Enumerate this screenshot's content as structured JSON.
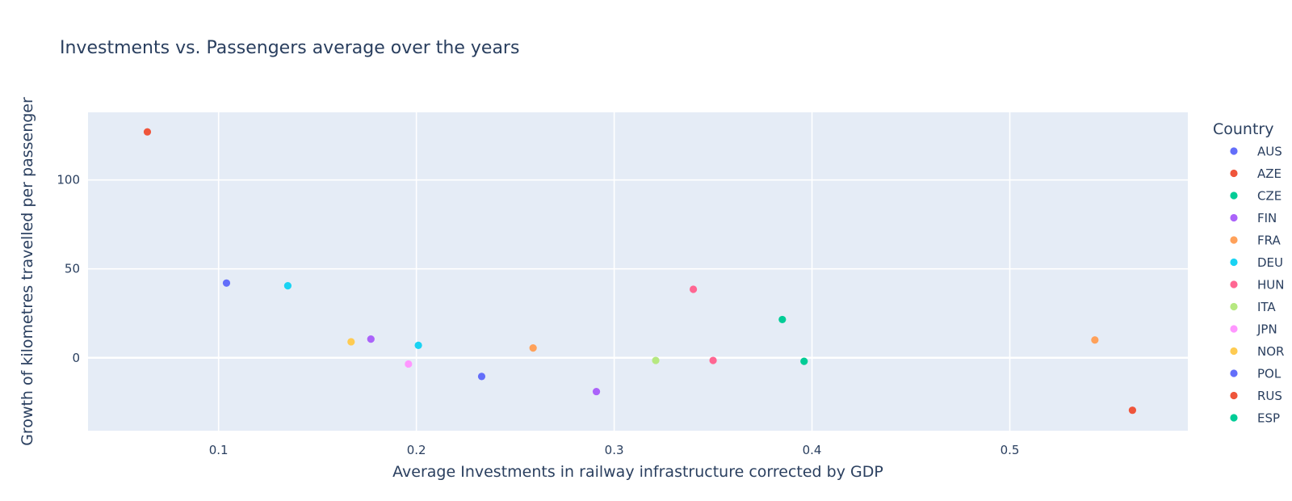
{
  "chart_data": {
    "type": "scatter",
    "title": "Investments vs. Passengers average over the years",
    "xlabel": "Average Investments in railway infrastructure corrected by GDP",
    "ylabel": "Growth of kilometres travelled per passenger",
    "xlim": [
      0.034,
      0.59
    ],
    "ylim": [
      -41,
      138
    ],
    "xticks": [
      0.1,
      0.2,
      0.3,
      0.4,
      0.5
    ],
    "xtick_labels": [
      "0.1",
      "0.2",
      "0.3",
      "0.4",
      "0.5"
    ],
    "yticks": [
      0,
      50,
      100
    ],
    "ytick_labels": [
      "0",
      "50",
      "100"
    ],
    "grid": true,
    "plot_background": "#e5ecf6",
    "grid_color": "#ffffff",
    "legend": {
      "title": "Country",
      "placement": "right"
    },
    "series": [
      {
        "name": "AUS",
        "color": "#636efa",
        "points": [
          {
            "x": 0.104,
            "y": 42
          }
        ]
      },
      {
        "name": "AZE",
        "color": "#ef553b",
        "points": [
          {
            "x": 0.064,
            "y": 127
          }
        ]
      },
      {
        "name": "CZE",
        "color": "#00cc96",
        "points": [
          {
            "x": 0.396,
            "y": -2
          }
        ]
      },
      {
        "name": "FIN",
        "color": "#ab63fa",
        "points": [
          {
            "x": 0.177,
            "y": 10.5
          }
        ]
      },
      {
        "name": "FRA",
        "color": "#ffa15a",
        "points": [
          {
            "x": 0.259,
            "y": 5.5
          }
        ]
      },
      {
        "name": "DEU",
        "color": "#19d3f3",
        "points": [
          {
            "x": 0.135,
            "y": 40.5
          },
          {
            "x": 0.201,
            "y": 7
          }
        ]
      },
      {
        "name": "HUN",
        "color": "#ff6692",
        "points": [
          {
            "x": 0.34,
            "y": 38.5
          },
          {
            "x": 0.35,
            "y": -1.5
          }
        ]
      },
      {
        "name": "ITA",
        "color": "#b6e880",
        "points": [
          {
            "x": 0.321,
            "y": -1.5
          }
        ]
      },
      {
        "name": "JPN",
        "color": "#ff97ff",
        "points": [
          {
            "x": 0.196,
            "y": -3.5
          }
        ]
      },
      {
        "name": "NOR",
        "color": "#fecb52",
        "points": [
          {
            "x": 0.167,
            "y": 9
          }
        ]
      },
      {
        "name": "POL",
        "color": "#636efa",
        "points": [
          {
            "x": 0.233,
            "y": -10.5
          }
        ]
      },
      {
        "name": "RUS",
        "color": "#ef553b",
        "points": [
          {
            "x": 0.562,
            "y": -29.5
          }
        ]
      },
      {
        "name": "ESP",
        "color": "#00cc96",
        "points": [
          {
            "x": 0.385,
            "y": 21.5
          }
        ]
      },
      {
        "name": "",
        "color": "#ab63fa",
        "points": [
          {
            "x": 0.291,
            "y": -19
          }
        ]
      },
      {
        "name": "",
        "color": "#ffa15a",
        "points": [
          {
            "x": 0.543,
            "y": 10
          }
        ]
      }
    ]
  }
}
